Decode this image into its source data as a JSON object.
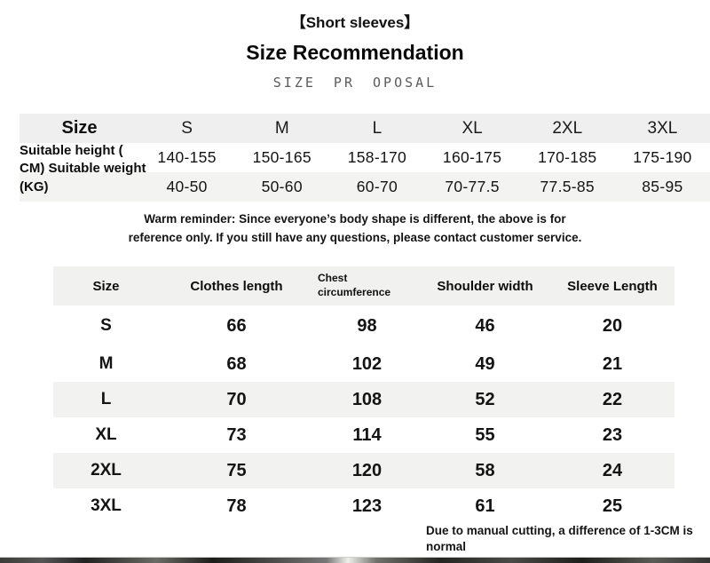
{
  "header": {
    "tag": "【Short sleeves】",
    "title": "Size Recommendation",
    "subtitle": "SIZE PR OPOSAL"
  },
  "size_table": {
    "corner_label": "Size",
    "row_label": "Suitable height ( CM) Suitable weight (KG)",
    "columns": [
      "S",
      "M",
      "L",
      "XL",
      "2XL",
      "3XL"
    ],
    "height_ranges": [
      "140-155",
      "150-165",
      "158-170",
      "160-175",
      "170-185",
      "175-190"
    ],
    "weight_ranges": [
      "40-50",
      "50-60",
      "60-70",
      "70-77.5",
      "77.5-85",
      "85-95"
    ]
  },
  "reminder": {
    "line1": "Warm reminder: Since everyone’s body shape is different, the above is for",
    "line2": "reference only. If you still have any questions, please contact customer service."
  },
  "measure_table": {
    "headers": {
      "size": "Size",
      "clothes": "Clothes length",
      "chest": "Chest circumference",
      "shoulder": "Shoulder width",
      "sleeve": "Sleeve Length"
    },
    "rows": [
      {
        "size": "S",
        "clothes": "66",
        "chest": "98",
        "shoulder": "46",
        "sleeve": "20"
      },
      {
        "size": "M",
        "clothes": "68",
        "chest": "102",
        "shoulder": "49",
        "sleeve": "21"
      },
      {
        "size": "L",
        "clothes": "70",
        "chest": "108",
        "shoulder": "52",
        "sleeve": "22"
      },
      {
        "size": "XL",
        "clothes": "73",
        "chest": "114",
        "shoulder": "55",
        "sleeve": "23"
      },
      {
        "size": "2XL",
        "clothes": "75",
        "chest": "120",
        "shoulder": "58",
        "sleeve": "24"
      },
      {
        "size": "3XL",
        "clothes": "78",
        "chest": "123",
        "shoulder": "61",
        "sleeve": "25"
      }
    ]
  },
  "footnote": "Due to manual cutting, a difference of 1-3CM is normal"
}
